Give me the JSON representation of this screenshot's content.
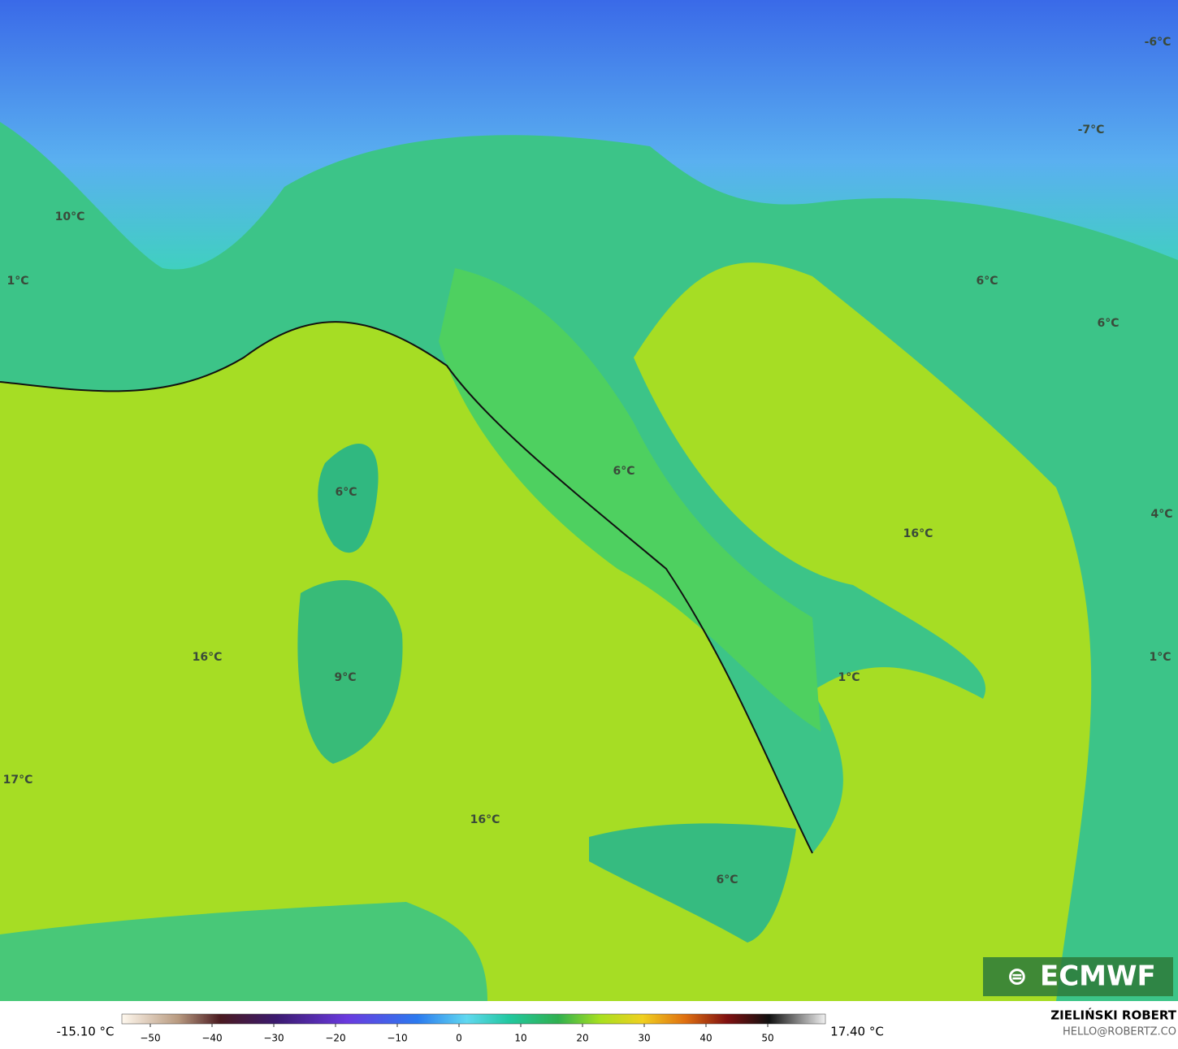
{
  "map": {
    "labels": [
      "-6°C",
      "-7°C",
      "10°C",
      "1°C",
      "6°C",
      "6°C",
      "6°C",
      "6°C",
      "16°C",
      "16°C",
      "9°C",
      "1°C",
      "17°C",
      "16°C",
      "6°C",
      "4°C",
      "1°C"
    ],
    "logo": "ECMWF"
  },
  "colorbar": {
    "min_label": "-15.10 °C",
    "max_label": "17.40 °C",
    "ticks": [
      {
        "value": -50,
        "label": "−50"
      },
      {
        "value": -40,
        "label": "−40"
      },
      {
        "value": -30,
        "label": "−30"
      },
      {
        "value": -20,
        "label": "−20"
      },
      {
        "value": -10,
        "label": "−10"
      },
      0,
      10,
      20,
      30,
      40,
      50
    ]
  },
  "credit": {
    "author": "ZIELIŃSKI ROBERT",
    "email": "HELLO@ROBERTZ.CO"
  }
}
